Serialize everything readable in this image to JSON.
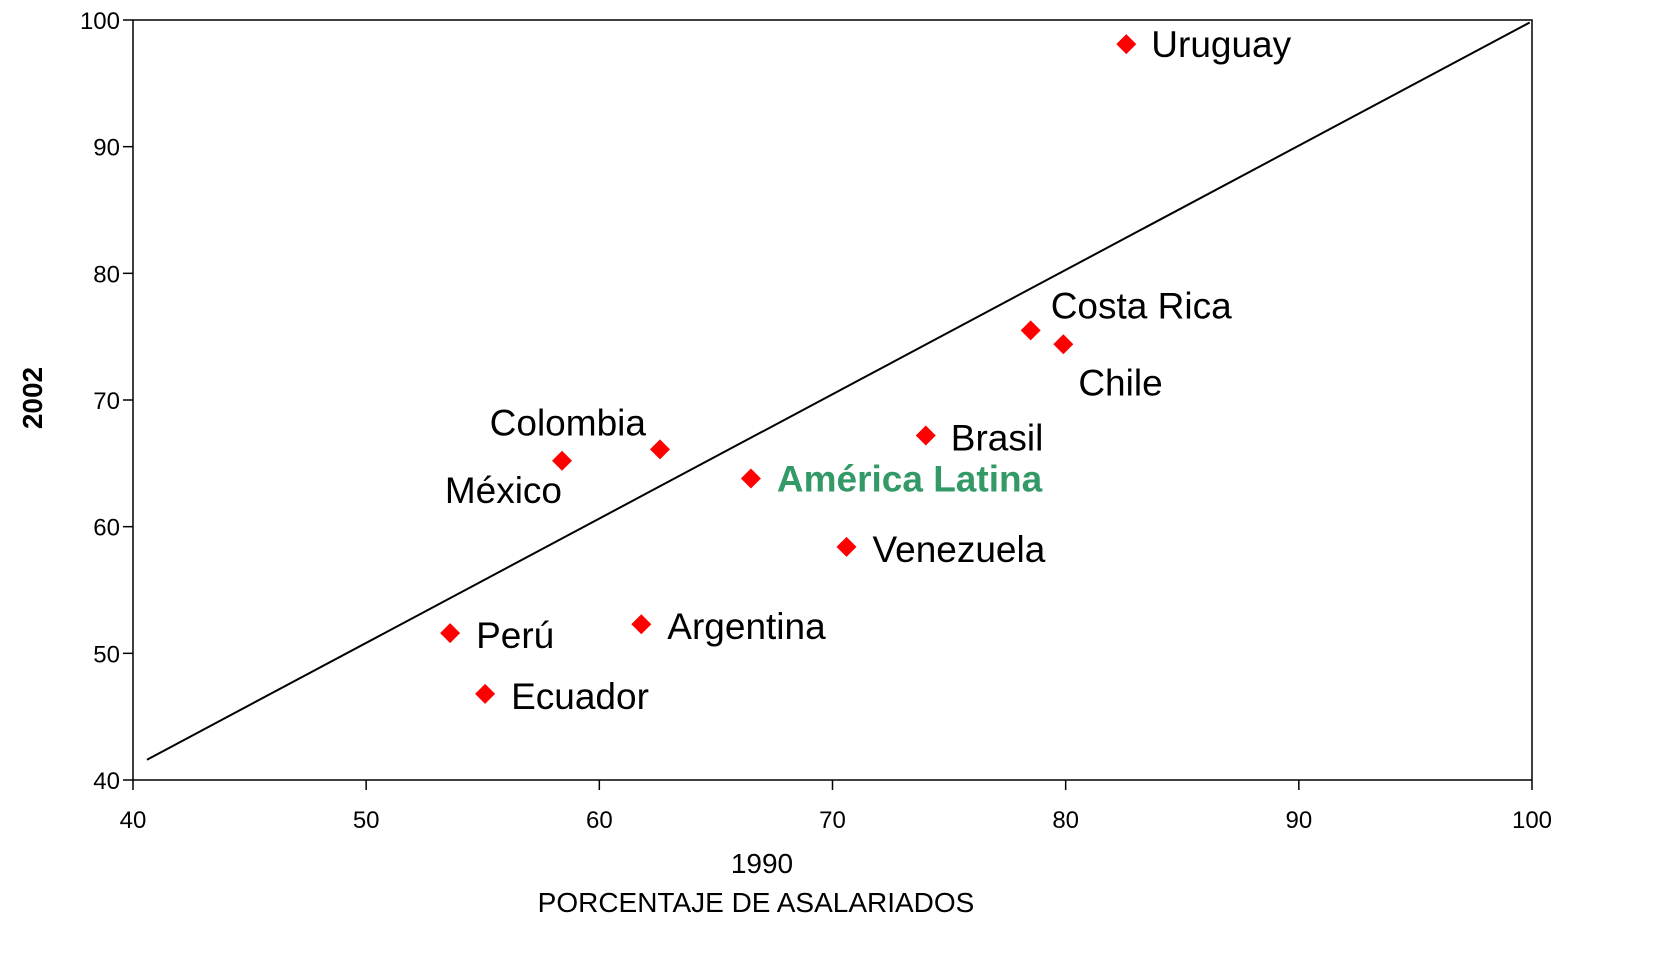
{
  "chart_data": {
    "type": "scatter",
    "title": "",
    "xlabel": "1990",
    "xlabel2": "PORCENTAJE DE ASALARIADOS",
    "ylabel": "2002",
    "xlim": [
      40,
      100
    ],
    "ylim": [
      40,
      100
    ],
    "xticks": [
      40,
      50,
      60,
      70,
      80,
      90,
      100
    ],
    "yticks": [
      40,
      50,
      60,
      70,
      80,
      90,
      100
    ],
    "grid": false,
    "marker_color": "#FF0000",
    "highlight_color": "#339966",
    "reference_line": {
      "x": [
        40.6,
        99.9
      ],
      "y": [
        41.6,
        99.8
      ]
    },
    "points": [
      {
        "label": "Uruguay",
        "x": 82.6,
        "y": 98.1,
        "highlight": false
      },
      {
        "label": "Costa Rica",
        "x": 78.5,
        "y": 75.5,
        "highlight": false
      },
      {
        "label": "Chile",
        "x": 79.9,
        "y": 74.4,
        "highlight": false
      },
      {
        "label": "Brasil",
        "x": 74.0,
        "y": 67.2,
        "highlight": false
      },
      {
        "label": "Colombia",
        "x": 62.6,
        "y": 66.1,
        "highlight": false
      },
      {
        "label": "México",
        "x": 58.4,
        "y": 65.2,
        "highlight": false
      },
      {
        "label": "América Latina",
        "x": 66.5,
        "y": 63.8,
        "highlight": true
      },
      {
        "label": "Venezuela",
        "x": 70.6,
        "y": 58.4,
        "highlight": false
      },
      {
        "label": "Argentina",
        "x": 61.8,
        "y": 52.3,
        "highlight": false
      },
      {
        "label": "Perú",
        "x": 53.6,
        "y": 51.6,
        "highlight": false
      },
      {
        "label": "Ecuador",
        "x": 55.1,
        "y": 46.8,
        "highlight": false
      }
    ]
  }
}
